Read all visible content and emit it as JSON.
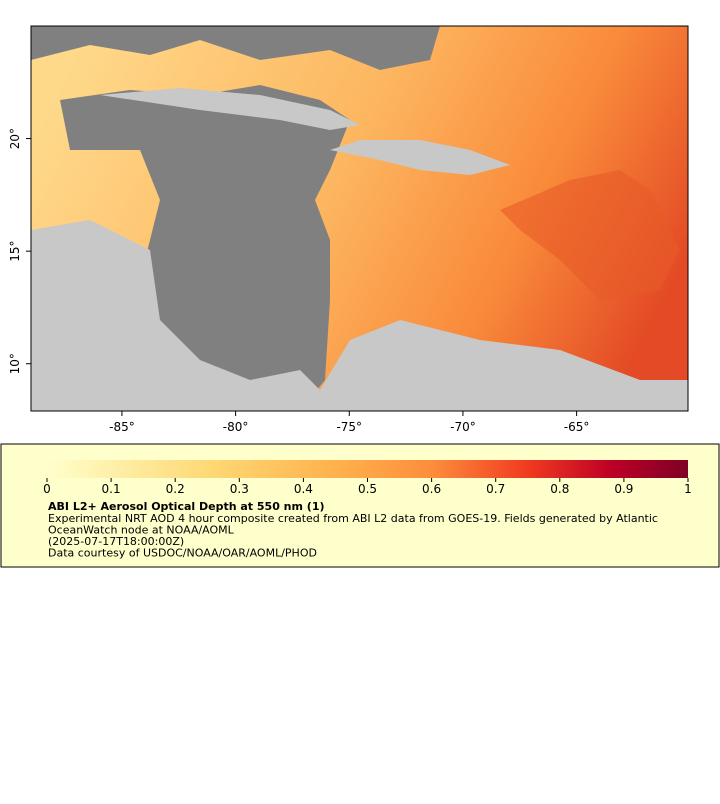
{
  "map": {
    "xlim": [
      -89,
      -60.1
    ],
    "ylim": [
      7.9,
      25
    ],
    "xticks": [
      {
        "value": -85,
        "label": "-85°"
      },
      {
        "value": -80,
        "label": "-80°"
      },
      {
        "value": -75,
        "label": "-75°"
      },
      {
        "value": -70,
        "label": "-70°"
      },
      {
        "value": -65,
        "label": "-65°"
      }
    ],
    "yticks": [
      {
        "value": 10,
        "label": "10°"
      },
      {
        "value": 15,
        "label": "15°"
      },
      {
        "value": 20,
        "label": "20°"
      }
    ]
  },
  "colorbar": {
    "range": [
      0,
      1
    ],
    "ticks": [
      0,
      0.1,
      0.2,
      0.3,
      0.4,
      0.5,
      0.6,
      0.7,
      0.8,
      0.9,
      1
    ]
  },
  "caption": {
    "title": "ABI L2+ Aerosol Optical Depth at 550 nm (1)",
    "lines": [
      "Experimental NRT AOD 4 hour composite created from ABI L2 data from GOES-19. Fields generated by Atlantic",
      "OceanWatch node at NOAA/AOML",
      "(2025-07-17T18:00:00Z)",
      "Data courtesy of USDOC/NOAA/OAR/AOML/PHOD"
    ]
  }
}
